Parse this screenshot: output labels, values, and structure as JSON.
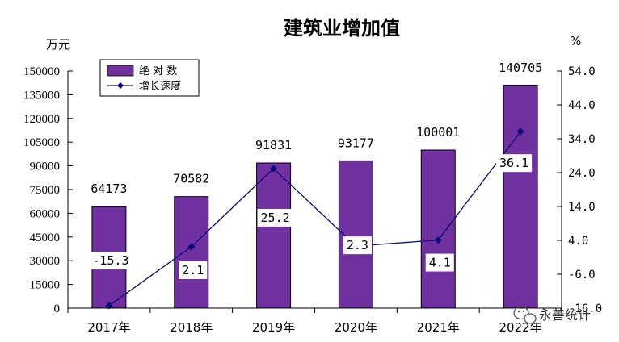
{
  "chart_data": {
    "type": "bar+line",
    "title": "建筑业增加值",
    "left_unit": "万元",
    "right_unit": "%",
    "categories": [
      "2017年",
      "2018年",
      "2019年",
      "2020年",
      "2021年",
      "2022年"
    ],
    "series": [
      {
        "name": "绝 对 数",
        "type": "bar",
        "axis": "left",
        "values": [
          64173,
          70582,
          91831,
          93177,
          100001,
          140705
        ],
        "labels": [
          "64173",
          "70582",
          "91831",
          "93177",
          "100001",
          "140705"
        ]
      },
      {
        "name": "增长速度",
        "type": "line",
        "axis": "right",
        "values": [
          -15.3,
          2.1,
          25.2,
          2.3,
          4.1,
          36.1
        ],
        "labels": [
          "-15.3",
          "2.1",
          "25.2",
          "2.3",
          "4.1",
          "36.1"
        ]
      }
    ],
    "left_axis": {
      "range": [
        0,
        150000
      ],
      "ticks": [
        "0",
        "15000",
        "30000",
        "45000",
        "60000",
        "75000",
        "90000",
        "105000",
        "120000",
        "135000",
        "150000"
      ]
    },
    "right_axis": {
      "range": [
        -16.0,
        54.0
      ],
      "ticks": [
        "-16.0",
        "-6.0",
        "4.0",
        "14.0",
        "24.0",
        "34.0",
        "44.0",
        "54.0"
      ]
    },
    "legend_position": "top-left",
    "grid": false,
    "colors": {
      "bar": "#7030a0",
      "bar_stroke": "#000000",
      "line": "#0a0a80",
      "axis": "#000000"
    }
  },
  "watermark": {
    "text": "永善统计",
    "icon": "wechat-icon"
  }
}
